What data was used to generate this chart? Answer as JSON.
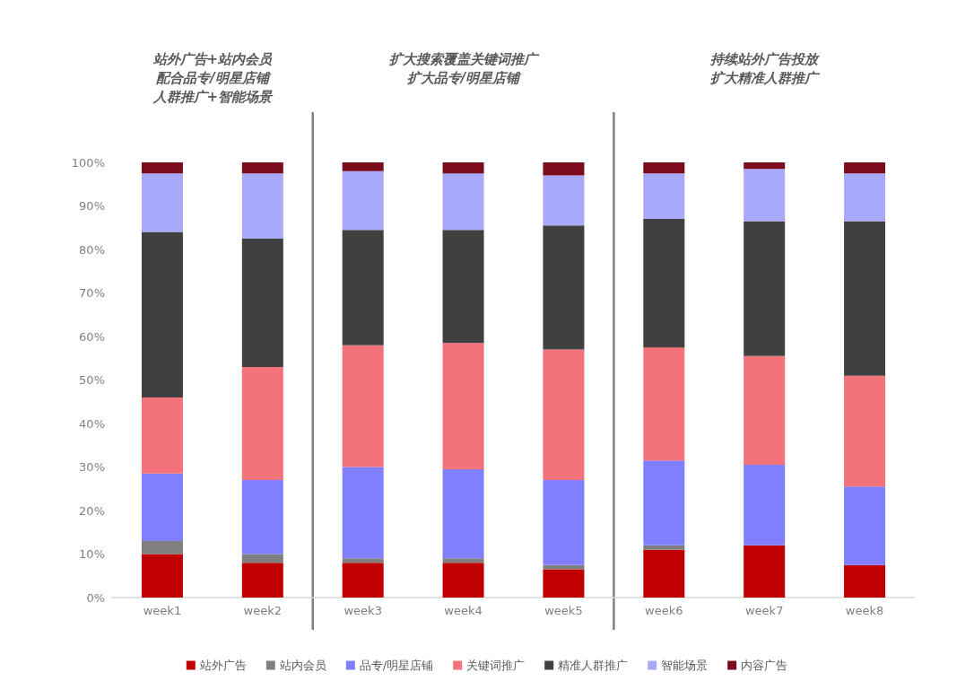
{
  "chart_data": {
    "type": "bar",
    "stacked": true,
    "categories": [
      "week1",
      "week2",
      "week3",
      "week4",
      "week5",
      "week6",
      "week7",
      "week8"
    ],
    "series": [
      {
        "name": "站外广告",
        "color": "#c00000",
        "values": [
          10,
          8,
          8,
          8,
          6.5,
          11,
          12,
          7.5
        ]
      },
      {
        "name": "站内会员",
        "color": "#7f7f7f",
        "values": [
          3,
          2,
          1,
          1,
          1,
          1,
          0,
          0
        ]
      },
      {
        "name": "品专/明星店铺",
        "color": "#7f7fff",
        "values": [
          15.5,
          17,
          21,
          20.5,
          19.5,
          19.5,
          18.5,
          18
        ]
      },
      {
        "name": "关键词推广",
        "color": "#f4727a",
        "values": [
          17.5,
          26,
          28,
          29,
          30,
          26,
          25,
          25.5
        ]
      },
      {
        "name": "精准人群推广",
        "color": "#404040",
        "values": [
          38,
          29.5,
          26.5,
          26,
          28.5,
          29.5,
          31,
          35.5
        ]
      },
      {
        "name": "智能场景",
        "color": "#a9a9f9",
        "values": [
          13.5,
          15,
          13.5,
          13,
          11.5,
          10.5,
          12,
          11
        ]
      },
      {
        "name": "内容广告",
        "color": "#7b0c1c",
        "values": [
          2.5,
          2.5,
          2,
          2.5,
          3,
          2.5,
          1.5,
          2.5
        ]
      }
    ],
    "ylim": [
      0,
      100
    ],
    "yticks": [
      {
        "value": 0,
        "label": "0%"
      },
      {
        "value": 10,
        "label": "10%"
      },
      {
        "value": 20,
        "label": "20%"
      },
      {
        "value": 30,
        "label": "30%"
      },
      {
        "value": 40,
        "label": "40%"
      },
      {
        "value": 50,
        "label": "50%"
      },
      {
        "value": 60,
        "label": "60%"
      },
      {
        "value": 70,
        "label": "70%"
      },
      {
        "value": 80,
        "label": "80%"
      },
      {
        "value": 90,
        "label": "90%"
      },
      {
        "value": 100,
        "label": "100%"
      }
    ],
    "grid": false,
    "legend": "bottom",
    "annotations": [
      "站外广告+站内会员配合品专/明星店铺人群推广+智能场景",
      "扩大搜索覆盖关键词推广扩大品专/明星店铺",
      "持续站外广告投放扩大精准人群推广"
    ]
  }
}
